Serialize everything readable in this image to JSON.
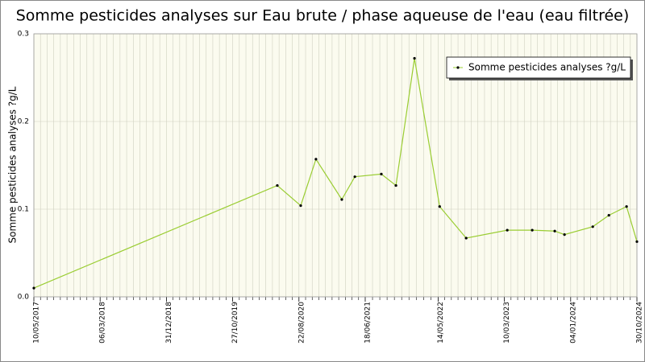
{
  "chart_data": {
    "type": "line",
    "title": "Somme pesticides analyses sur Eau brute / phase aqueuse de l'eau (eau filtrée)",
    "y_label": "Somme pesticides analyses ?g/L",
    "legend_position": "top-right",
    "grid": true,
    "xlim": [
      "2017-05-10",
      "2024-10-30"
    ],
    "xticks": [
      {
        "value": "2017-05-10",
        "label": "10/05/2017"
      },
      {
        "value": "2018-03-06",
        "label": "06/03/2018"
      },
      {
        "value": "2018-12-31",
        "label": "31/12/2018"
      },
      {
        "value": "2019-10-27",
        "label": "27/10/2019"
      },
      {
        "value": "2020-08-22",
        "label": "22/08/2020"
      },
      {
        "value": "2021-06-18",
        "label": "18/06/2021"
      },
      {
        "value": "2022-05-14",
        "label": "14/05/2022"
      },
      {
        "value": "2023-03-10",
        "label": "10/03/2023"
      },
      {
        "value": "2024-01-04",
        "label": "04/01/2024"
      },
      {
        "value": "2024-10-30",
        "label": "30/10/2024"
      }
    ],
    "ylim": [
      0,
      0.3
    ],
    "yticks": [
      {
        "value": 0,
        "label": "0.0"
      },
      0.1,
      0.2,
      0.3
    ],
    "x": [
      "2017-05-10",
      "2020-05-16",
      "2020-08-30",
      "2020-11-07",
      "2021-03-04",
      "2021-05-02",
      "2021-08-30",
      "2021-11-04",
      "2022-01-27",
      "2022-05-21",
      "2022-09-18",
      "2023-03-23",
      "2023-07-14",
      "2023-10-24",
      "2023-12-07",
      "2024-04-13",
      "2024-06-25",
      "2024-09-13",
      "2024-10-30"
    ],
    "series": [
      {
        "name": "Somme pesticides analyses ?g/L",
        "color": "#9acd32",
        "values": [
          0.01,
          0.127,
          0.104,
          0.157,
          0.111,
          0.137,
          0.14,
          0.127,
          0.272,
          0.103,
          0.067,
          0.076,
          0.076,
          0.075,
          0.071,
          0.08,
          0.093,
          0.103,
          0.063
        ]
      }
    ]
  }
}
